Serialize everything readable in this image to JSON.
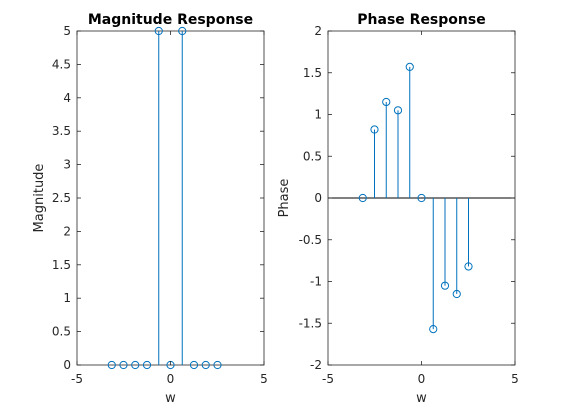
{
  "chart_data": [
    {
      "type": "stem",
      "title": "Magnitude Response",
      "xlabel": "w",
      "ylabel": "Magnitude",
      "xlim": [
        -5,
        5
      ],
      "ylim": [
        0,
        5
      ],
      "xticks": [
        -5,
        0,
        5
      ],
      "yticks": [
        0,
        0.5,
        1,
        1.5,
        2,
        2.5,
        3,
        3.5,
        4,
        4.5,
        5
      ],
      "grid": false,
      "color": "#0072bd",
      "x": [
        -3.1416,
        -2.5133,
        -1.885,
        -1.2566,
        -0.6283,
        0,
        0.6283,
        1.2566,
        1.885,
        2.5133
      ],
      "y": [
        0,
        0,
        0,
        0,
        5,
        0,
        5,
        0,
        0,
        0
      ]
    },
    {
      "type": "stem",
      "title": "Phase Response",
      "xlabel": "w",
      "ylabel": "Phase",
      "xlim": [
        -5,
        5
      ],
      "ylim": [
        -2,
        2
      ],
      "xticks": [
        -5,
        0,
        5
      ],
      "yticks": [
        -2,
        -1.5,
        -1,
        -0.5,
        0,
        0.5,
        1,
        1.5,
        2
      ],
      "grid": false,
      "color": "#0072bd",
      "x": [
        -3.1416,
        -2.5133,
        -1.885,
        -1.2566,
        -0.6283,
        0,
        0.6283,
        1.2566,
        1.885,
        2.5133
      ],
      "y": [
        0,
        0.82,
        1.15,
        1.05,
        1.57,
        0,
        -1.57,
        -1.05,
        -1.15,
        -0.82
      ]
    }
  ]
}
